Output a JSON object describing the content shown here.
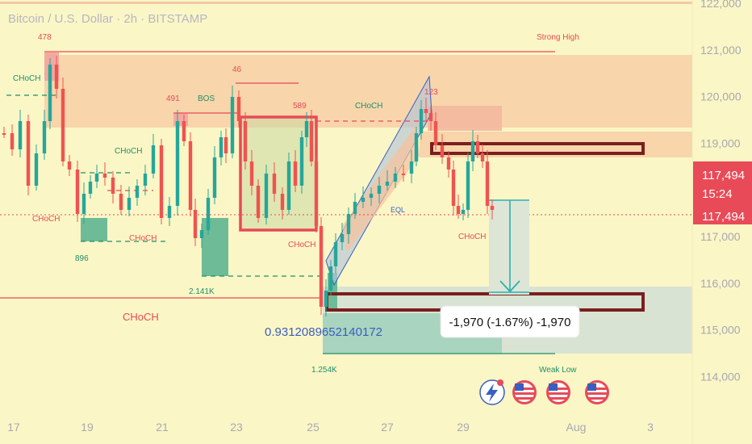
{
  "header": {
    "title": "Bitcoin / U.S. Dollar · 2h · BITSTAMP"
  },
  "price_axis": {
    "ticks": [
      "122,000",
      "121,000",
      "120,000",
      "119,000",
      "117,000",
      "116,000",
      "115,000",
      "114,000"
    ],
    "tick_values": [
      122000,
      121000,
      120000,
      119000,
      117000,
      116000,
      115000,
      114000
    ],
    "last_price": "117,494",
    "countdown": "15:24",
    "crosshair_price": "117,494"
  },
  "time_axis": {
    "ticks": [
      "17",
      "19",
      "21",
      "23",
      "25",
      "27",
      "29",
      "Aug",
      "3"
    ]
  },
  "chart_data": {
    "type": "candlestick",
    "symbol": "Bitcoin / U.S. Dollar",
    "timeframe": "2h",
    "exchange": "BITSTAMP",
    "ylim": [
      113300,
      122200
    ],
    "x_range": [
      "Jul 16",
      "Aug 3"
    ],
    "last_price": 117494,
    "annotations": [
      "478",
      "Strong High",
      "CHoCH",
      "46",
      "491",
      "BOS",
      "589",
      "CHoCH",
      "123",
      "CHoCH",
      "CHoCH",
      "CHoCH",
      "896",
      "CHoCH",
      "2.141K",
      "CHoCH",
      "EQL",
      "CHoCH",
      "CHoCH",
      "0.9312089652140172",
      "1.254K",
      "Weak Low"
    ],
    "measure": {
      "change": -1970,
      "percent": -1.67,
      "text": "-1,970 (-1.67%) -1,970"
    },
    "colors": {
      "up": "#26a69a",
      "down": "#ef5350",
      "background": "#fbf6c6"
    }
  },
  "labels": {
    "l478": "478",
    "strong_high": "Strong High",
    "choch_top": "CHoCH",
    "l46": "46",
    "l491": "491",
    "bos": "BOS",
    "l589": "589",
    "choch_channel": "CHoCH",
    "l123": "123",
    "choch_left_mid": "CHoCH",
    "choch_left_low": "CHoCH",
    "choch_19": "CHoCH",
    "l896": "896",
    "choch_20": "CHoCH",
    "l2141k": "2.141K",
    "choch_box": "CHoCH",
    "eql": "EQL",
    "choch_29": "CHoCH",
    "choch_big": "CHoCH",
    "long_num": "0.9312089652140172",
    "l1254k": "1.254K",
    "weak_low": "Weak Low",
    "measure": "-1,970 (-1.67%) -1,970"
  },
  "events": {
    "icons": [
      "lightning-icon",
      "us-flag-icon",
      "us-flag-icon",
      "us-flag-icon",
      "us-flag-icon"
    ]
  }
}
